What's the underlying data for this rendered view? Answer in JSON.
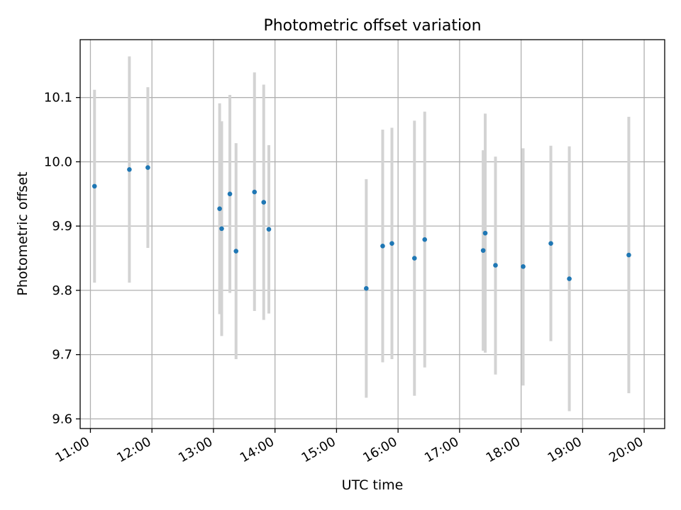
{
  "chart_data": {
    "type": "scatter",
    "title": "Photometric offset variation",
    "xlabel": "UTC time",
    "ylabel": "Photometric offset",
    "x_ticks": [
      "11:00",
      "12:00",
      "13:00",
      "14:00",
      "15:00",
      "16:00",
      "17:00",
      "18:00",
      "19:00",
      "20:00"
    ],
    "y_ticks": [
      "9.6",
      "9.7",
      "9.8",
      "9.9",
      "10.0",
      "10.1"
    ],
    "xlim": [
      "10:50",
      "20:20"
    ],
    "ylim": [
      9.585,
      10.19
    ],
    "grid": true,
    "colors": {
      "point": "#1f77b4",
      "errorbar": "#d3d3d3",
      "grid": "#b0b0b0"
    },
    "points": [
      {
        "x": "11:04",
        "y": 9.962,
        "low": 9.812,
        "high": 10.112
      },
      {
        "x": "11:38",
        "y": 9.988,
        "low": 9.812,
        "high": 10.164
      },
      {
        "x": "11:56",
        "y": 9.991,
        "low": 9.866,
        "high": 10.116
      },
      {
        "x": "13:06",
        "y": 9.927,
        "low": 9.763,
        "high": 10.091
      },
      {
        "x": "13:08",
        "y": 9.896,
        "low": 9.729,
        "high": 10.063
      },
      {
        "x": "13:16",
        "y": 9.95,
        "low": 9.796,
        "high": 10.104
      },
      {
        "x": "13:22",
        "y": 9.861,
        "low": 9.693,
        "high": 10.029
      },
      {
        "x": "13:40",
        "y": 9.953,
        "low": 9.768,
        "high": 10.139
      },
      {
        "x": "13:49",
        "y": 9.937,
        "low": 9.754,
        "high": 10.12
      },
      {
        "x": "13:54",
        "y": 9.895,
        "low": 9.764,
        "high": 10.026
      },
      {
        "x": "15:29",
        "y": 9.803,
        "low": 9.633,
        "high": 9.973
      },
      {
        "x": "15:45",
        "y": 9.869,
        "low": 9.688,
        "high": 10.05
      },
      {
        "x": "15:54",
        "y": 9.873,
        "low": 9.693,
        "high": 10.053
      },
      {
        "x": "16:16",
        "y": 9.85,
        "low": 9.636,
        "high": 10.064
      },
      {
        "x": "16:26",
        "y": 9.879,
        "low": 9.68,
        "high": 10.078
      },
      {
        "x": "17:23",
        "y": 9.862,
        "low": 9.706,
        "high": 10.018
      },
      {
        "x": "17:25",
        "y": 9.889,
        "low": 9.703,
        "high": 10.075
      },
      {
        "x": "17:35",
        "y": 9.839,
        "low": 9.669,
        "high": 10.008
      },
      {
        "x": "18:02",
        "y": 9.837,
        "low": 9.652,
        "high": 10.021
      },
      {
        "x": "18:29",
        "y": 9.873,
        "low": 9.721,
        "high": 10.025
      },
      {
        "x": "18:47",
        "y": 9.818,
        "low": 9.612,
        "high": 10.024
      },
      {
        "x": "19:45",
        "y": 9.855,
        "low": 9.64,
        "high": 10.07
      }
    ]
  }
}
